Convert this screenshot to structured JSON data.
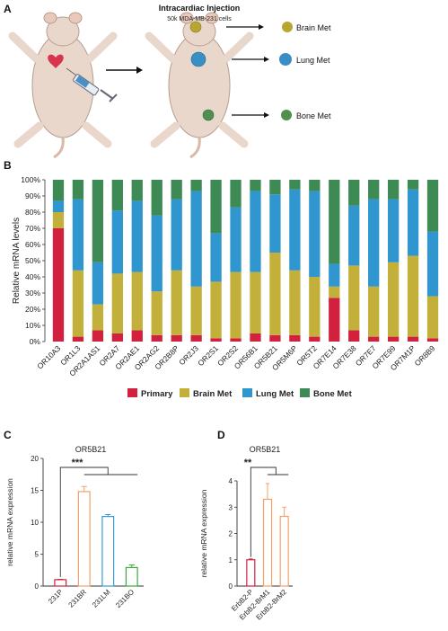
{
  "panel_a": {
    "letter": "A",
    "injection_title": "Intracardiac Injection",
    "injection_subtitle": "50k MDA-MB-231 cells",
    "outcomes": [
      {
        "label": "Brain Met",
        "color": "#b8a532"
      },
      {
        "label": "Lung Met",
        "color": "#3a8fc2"
      },
      {
        "label": "Bone Met",
        "color": "#4f8f4f"
      }
    ]
  },
  "colors": {
    "primary": "#d2213f",
    "brain": "#c2b03a",
    "lung": "#2f96cf",
    "bone": "#3d8a55",
    "mouse": "#ead7cc",
    "heart": "#d9344e"
  },
  "chart_data": [
    {
      "panel": "B",
      "type": "bar",
      "stacked": true,
      "ylabel": "Relative mRNA levels",
      "ylim": [
        0,
        100
      ],
      "yticks": [
        "0%",
        "10%",
        "20%",
        "30%",
        "40%",
        "50%",
        "60%",
        "70%",
        "80%",
        "90%",
        "100%"
      ],
      "categories": [
        "OR10A3",
        "OR1L3",
        "OR2A1AS1",
        "OR2A7",
        "OR2AE1",
        "OR2AG2",
        "OR2B8P",
        "OR2J3",
        "OR2S1",
        "OR2S2",
        "OR56B1",
        "OR5B21",
        "OR5M6P",
        "OR5T2",
        "OR7E14",
        "OR7E38",
        "OR7E7",
        "OR7E99",
        "OR7M1P",
        "OR8B9"
      ],
      "series": [
        {
          "name": "Primary",
          "color": "#d2213f",
          "values": [
            70,
            3,
            7,
            5,
            7,
            4,
            4,
            4,
            2,
            2,
            5,
            4,
            4,
            3,
            27,
            7,
            3,
            3,
            3,
            2
          ]
        },
        {
          "name": "Brain Met",
          "color": "#c2b03a",
          "values": [
            10,
            41,
            16,
            37,
            36,
            27,
            40,
            30,
            35,
            41,
            38,
            51,
            40,
            37,
            7,
            40,
            31,
            46,
            50,
            26
          ]
        },
        {
          "name": "Lung Met",
          "color": "#2f96cf",
          "values": [
            7,
            44,
            26,
            39,
            44,
            47,
            44,
            59,
            30,
            40,
            50,
            36,
            50,
            53,
            14,
            37,
            54,
            39,
            41,
            40
          ]
        },
        {
          "name": "Bone Met",
          "color": "#3d8a55",
          "values": [
            13,
            12,
            51,
            19,
            13,
            22,
            12,
            7,
            33,
            17,
            7,
            9,
            6,
            7,
            52,
            16,
            12,
            12,
            6,
            32
          ]
        }
      ],
      "legend": "bottom"
    },
    {
      "panel": "C",
      "type": "bar",
      "title": "OR5B21",
      "ylabel": "relative mRNA expression",
      "ylim": [
        0,
        20
      ],
      "yticks": [
        0,
        5,
        10,
        15,
        20
      ],
      "categories": [
        "231P",
        "231BR",
        "231LM",
        "231BO"
      ],
      "values": [
        1,
        14.8,
        10.9,
        2.9
      ],
      "errors": [
        0.05,
        0.8,
        0.3,
        0.4
      ],
      "colors": [
        "#d2213f",
        "#f3a06a",
        "#3a9ad6",
        "#3aab3a"
      ],
      "significance": "***"
    },
    {
      "panel": "D",
      "type": "bar",
      "title": "OR5B21",
      "ylabel": "relative mRNA expression",
      "ylim": [
        0,
        4
      ],
      "yticks": [
        0,
        1,
        2,
        3,
        4
      ],
      "categories": [
        "ErbB2-P",
        "ErbB2-BrM1",
        "ErbB2-BrM2"
      ],
      "values": [
        1.0,
        3.3,
        2.65
      ],
      "errors": [
        0.03,
        0.6,
        0.35
      ],
      "colors": [
        "#d2213f",
        "#f3a06a",
        "#f3a06a"
      ],
      "significance": "**"
    }
  ]
}
